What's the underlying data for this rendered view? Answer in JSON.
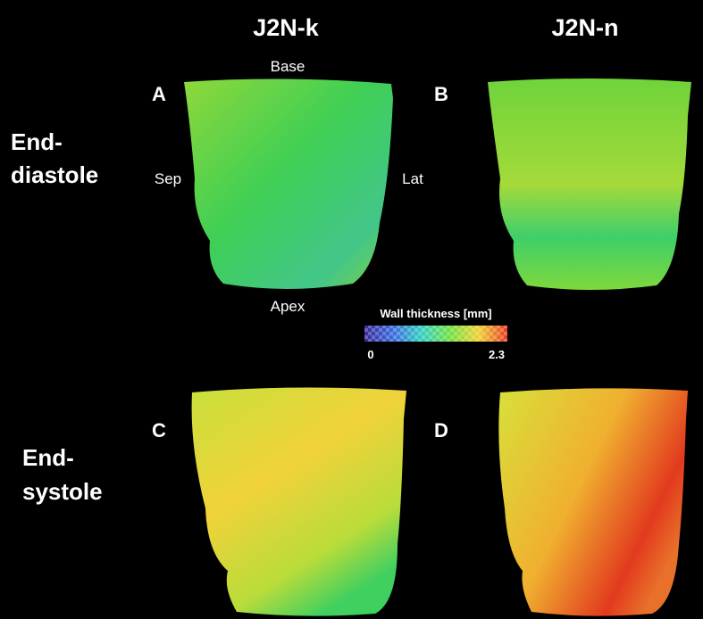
{
  "columns": [
    "J2N-k",
    "J2N-n"
  ],
  "rows": [
    {
      "label": [
        "End-",
        "diastole"
      ]
    },
    {
      "label": [
        "End-",
        "systole"
      ]
    }
  ],
  "panels": [
    "A",
    "B",
    "C",
    "D"
  ],
  "orientation": {
    "base": "Base",
    "septal": "Sep",
    "lateral": "Lat",
    "apex": "Apex"
  },
  "colorbar": {
    "title": "Wall thickness [mm]",
    "min": 0,
    "max": 2.3
  }
}
